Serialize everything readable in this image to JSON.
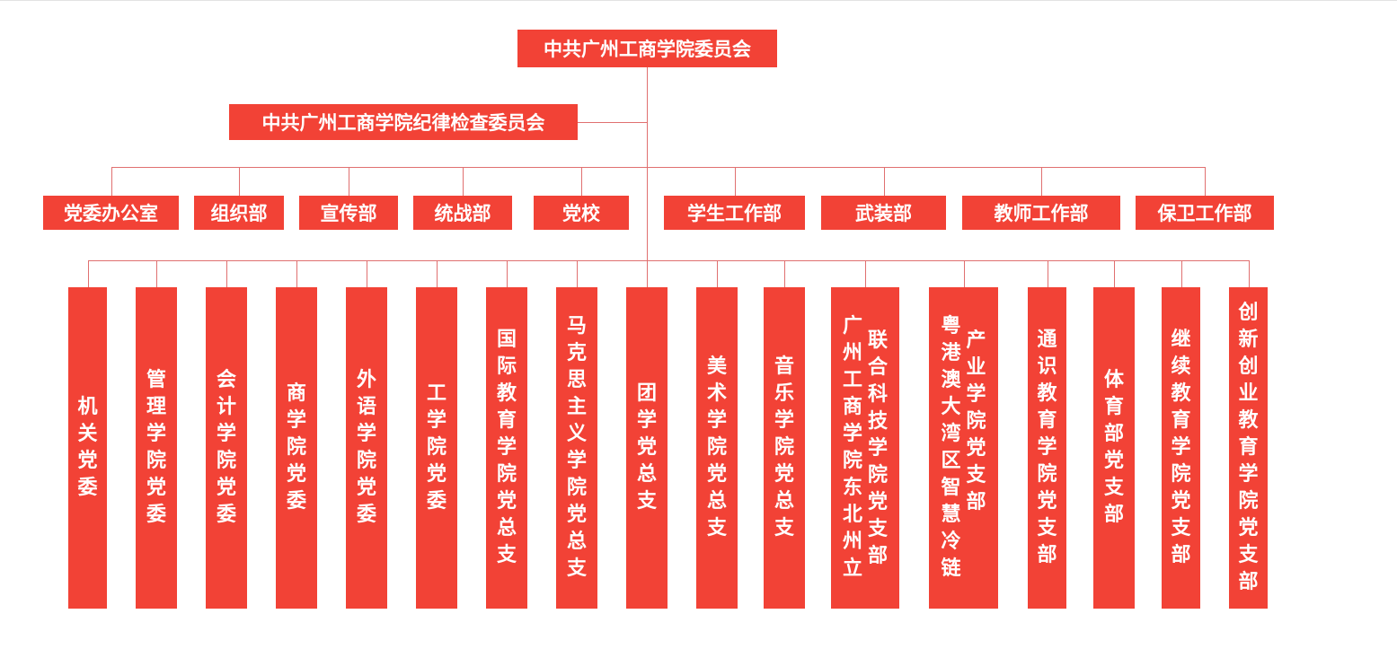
{
  "root": {
    "label": "中共广州工商学院委员会"
  },
  "discipline": {
    "label": "中共广州工商学院纪律检查委员会"
  },
  "departments": [
    "党委办公室",
    "组织部",
    "宣传部",
    "统战部",
    "党校",
    "学生工作部",
    "武装部",
    "教师工作部",
    "保卫工作部"
  ],
  "branches": [
    {
      "columns": [
        "机关党委"
      ]
    },
    {
      "columns": [
        "管理学院党委"
      ]
    },
    {
      "columns": [
        "会计学院党委"
      ]
    },
    {
      "columns": [
        "商学院党委"
      ]
    },
    {
      "columns": [
        "外语学院党委"
      ]
    },
    {
      "columns": [
        "工学院党委"
      ]
    },
    {
      "columns": [
        "国际教育学院党总支"
      ]
    },
    {
      "columns": [
        "马克思主义学院党总支"
      ]
    },
    {
      "columns": [
        "团学党总支"
      ]
    },
    {
      "columns": [
        "美术学院党总支"
      ]
    },
    {
      "columns": [
        "音乐学院党总支"
      ]
    },
    {
      "columns": [
        "广州工商学院东北州立",
        "联合科技学院党支部"
      ]
    },
    {
      "columns": [
        "粤港澳大湾区智慧冷链",
        "产业学院党支部"
      ]
    },
    {
      "columns": [
        "通识教育学院党支部"
      ]
    },
    {
      "columns": [
        "体育部党支部"
      ]
    },
    {
      "columns": [
        "继续教育学院党支部"
      ]
    },
    {
      "columns": [
        "创新创业教育学院党支部"
      ]
    }
  ],
  "colors": {
    "box": "#f24236",
    "text": "#ffffff",
    "line": "#e07070"
  }
}
